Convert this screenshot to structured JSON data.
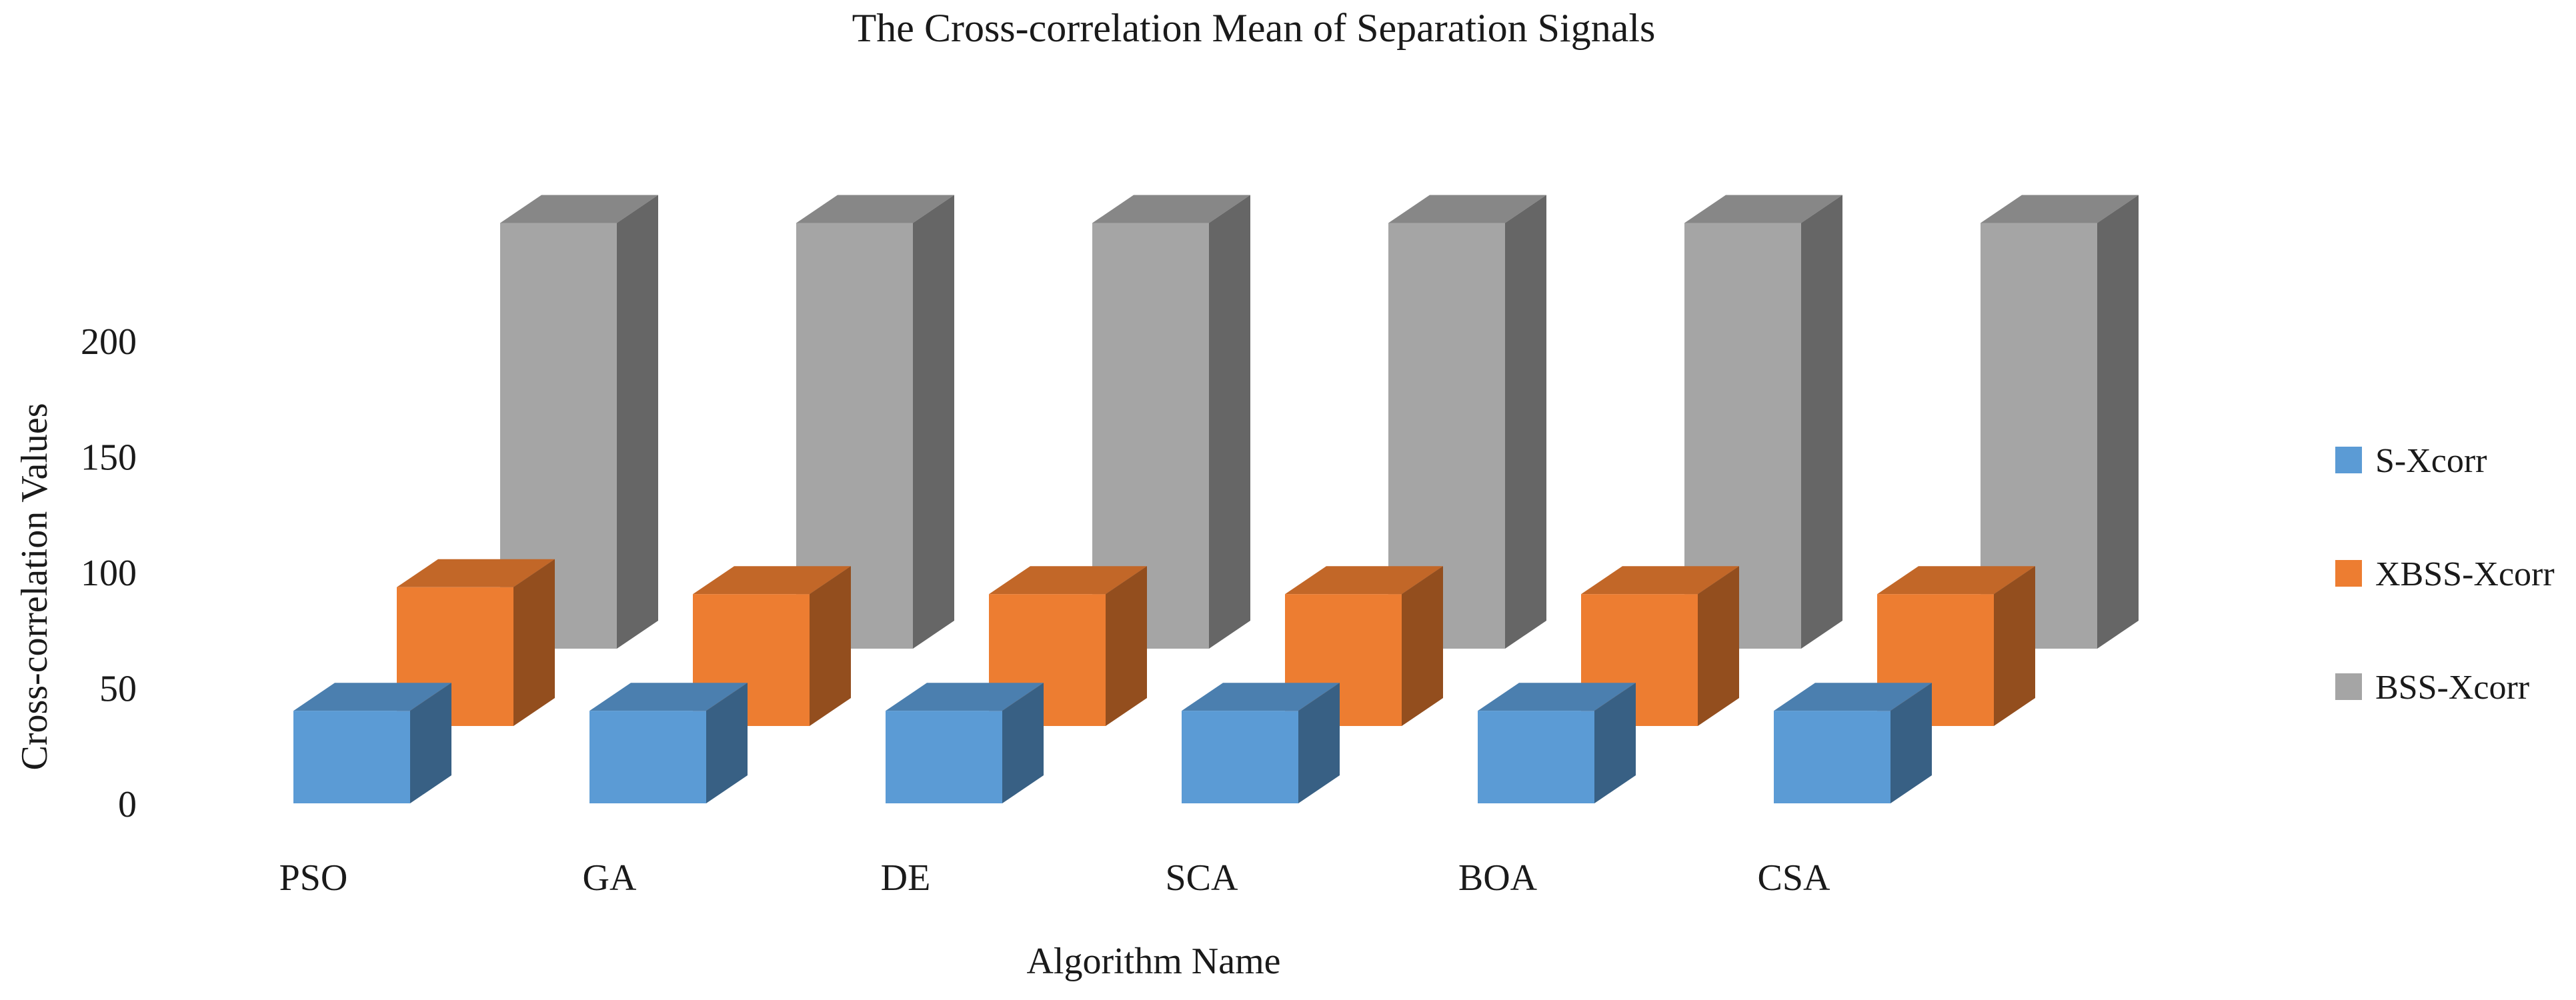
{
  "chart_data": {
    "type": "bar",
    "title": "The Cross-correlation  Mean of Separation Signals",
    "xlabel": "Algorithm  Name",
    "ylabel": "Cross-correlation  Values",
    "categories": [
      "PSO",
      "GA",
      "DE",
      "SCA",
      "BOA",
      "CSA"
    ],
    "yticks": [
      0,
      50,
      100,
      150,
      200
    ],
    "ylim": [
      0,
      240
    ],
    "grid": false,
    "legend_position": "right",
    "series": [
      {
        "name": "S-Xcorr",
        "color": "#5B9BD5",
        "values": [
          40,
          40,
          40,
          40,
          40,
          40
        ]
      },
      {
        "name": "XBSS-Xcorr",
        "color": "#ED7D31",
        "values": [
          60,
          57,
          57,
          57,
          57,
          57
        ]
      },
      {
        "name": "BSS-Xcorr",
        "color": "#A5A5A5",
        "values": [
          184,
          184,
          184,
          184,
          184,
          184
        ]
      }
    ]
  }
}
